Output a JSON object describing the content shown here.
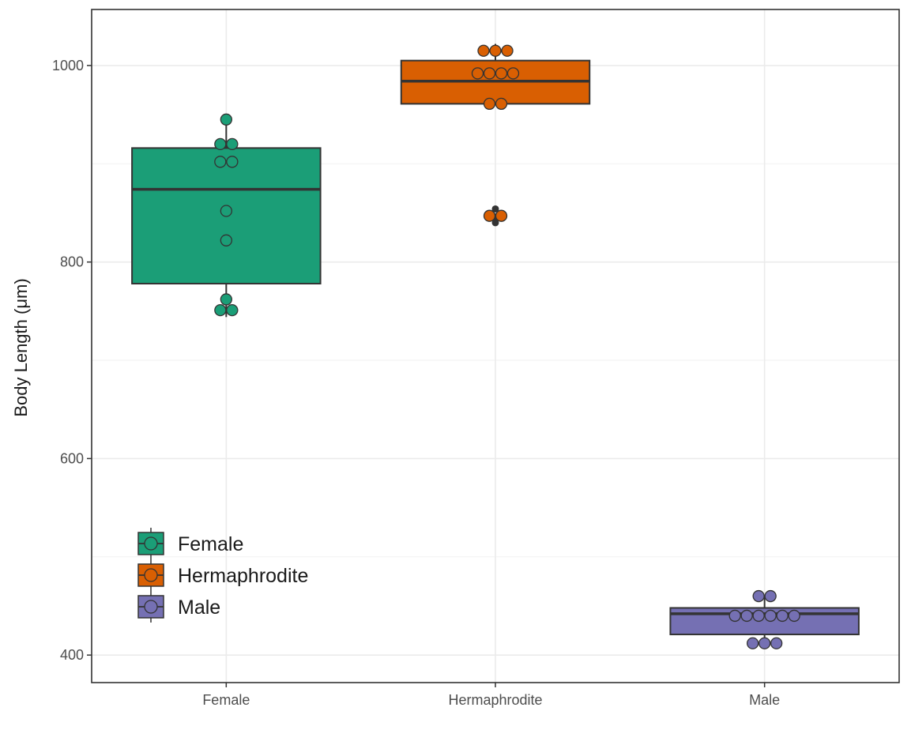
{
  "chart_data": {
    "type": "box",
    "xlabel": "",
    "ylabel": "Body Length (μm)",
    "ylim": [
      372,
      1057
    ],
    "y_ticks": [
      400,
      600,
      800,
      1000
    ],
    "grid": true,
    "legend_position": "bottom-left, inside plot",
    "categories": [
      "Female",
      "Hermaphrodite",
      "Male"
    ],
    "groups": [
      {
        "name": "Female",
        "color": "#1b9e77",
        "box": {
          "q1": 778,
          "median": 874,
          "q3": 916
        },
        "whisker_low": 744,
        "whisker_high": 945,
        "outliers": [],
        "points": [
          945,
          920,
          920,
          902,
          902,
          852,
          822,
          762,
          751,
          751
        ]
      },
      {
        "name": "Hermaphrodite",
        "color": "#d95f02",
        "box": {
          "q1": 961,
          "median": 984,
          "q3": 1005
        },
        "whisker_low": 961,
        "whisker_high": 1022,
        "outliers": [
          854,
          846,
          840
        ],
        "points": [
          1015,
          1015,
          1015,
          992,
          992,
          992,
          992,
          961,
          961,
          847,
          847
        ]
      },
      {
        "name": "Male",
        "color": "#7570b3",
        "box": {
          "q1": 421,
          "median": 442,
          "q3": 448
        },
        "whisker_low": 412,
        "whisker_high": 460,
        "outliers": [],
        "points": [
          460,
          460,
          440,
          440,
          440,
          440,
          440,
          440,
          412,
          412,
          412
        ]
      }
    ],
    "legend": [
      "Female",
      "Hermaphrodite",
      "Male"
    ]
  }
}
